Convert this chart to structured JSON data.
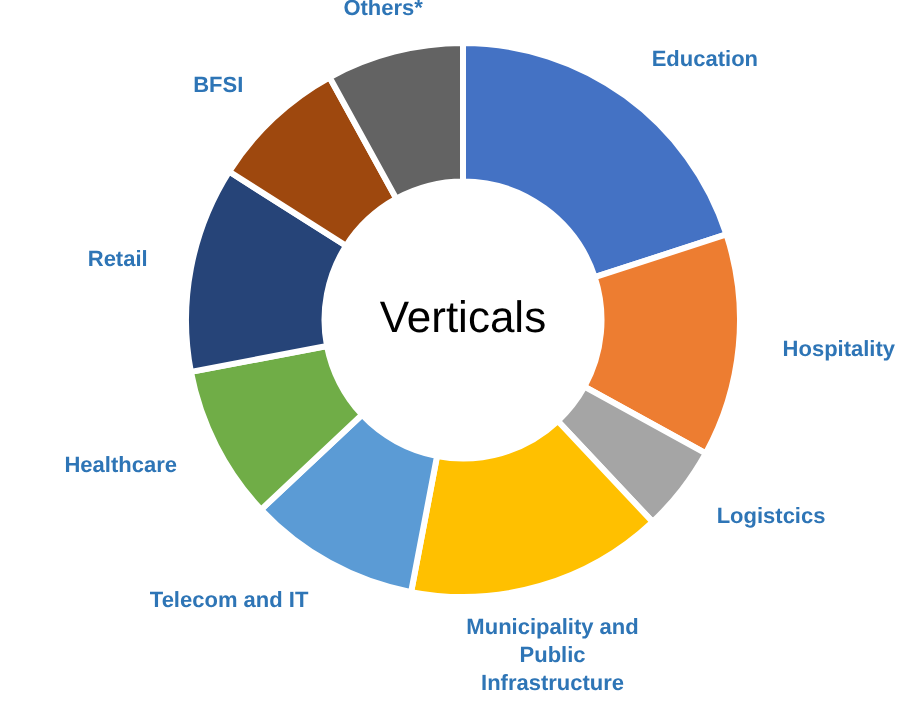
{
  "chart_data": {
    "type": "donut",
    "title": "Verticals",
    "categories": [
      "Education",
      "Hospitality",
      "Logistcics",
      "Municipality and Public Infrastructure",
      "Telecom and IT",
      "Healthcare",
      "Retail",
      "BFSI",
      "Others*"
    ],
    "values": [
      20,
      13,
      5,
      15,
      10,
      9,
      12,
      8,
      8
    ],
    "colors": [
      "#4472c4",
      "#ed7d31",
      "#a5a5a5",
      "#ffc000",
      "#5b9bd5",
      "#70ad47",
      "#264478",
      "#9e480e",
      "#636363"
    ],
    "legend": false
  }
}
